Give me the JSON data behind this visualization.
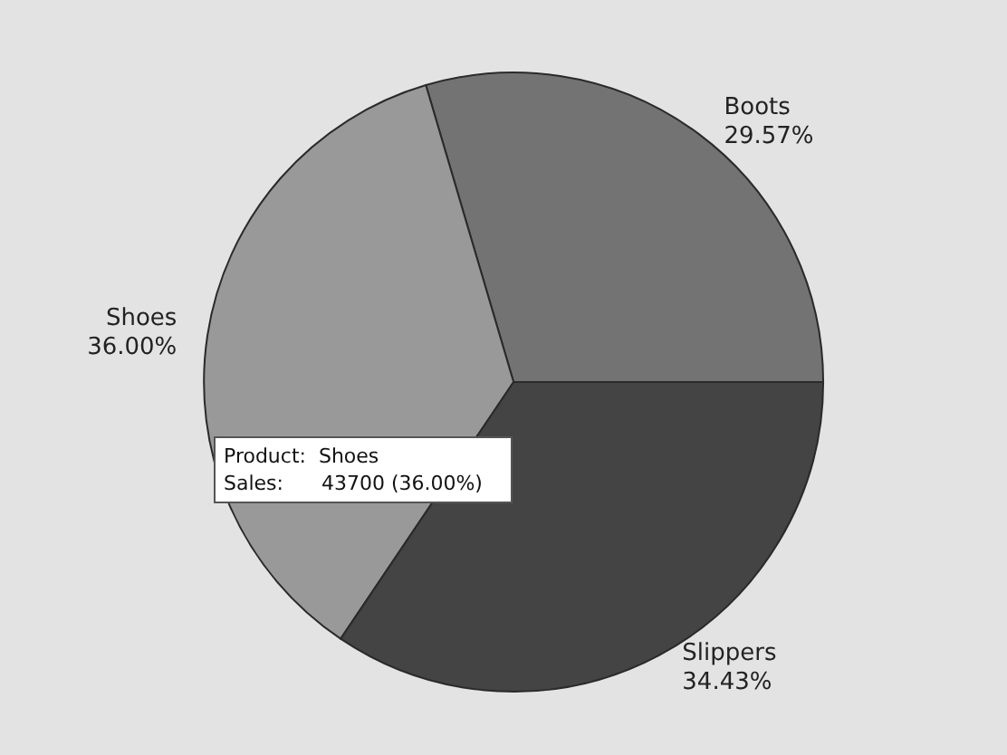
{
  "chart_data": {
    "type": "pie",
    "categories": [
      "Boots",
      "Shoes",
      "Slippers"
    ],
    "values": [
      29.57,
      36.0,
      34.43
    ],
    "value_labels": [
      "29.57%",
      "36.00%",
      "34.43%"
    ],
    "colors": [
      "#737373",
      "#999999",
      "#444444"
    ],
    "annotations": [
      "Product:  Shoes\nSales:      43700 (36.00%)"
    ],
    "legend": false
  }
}
